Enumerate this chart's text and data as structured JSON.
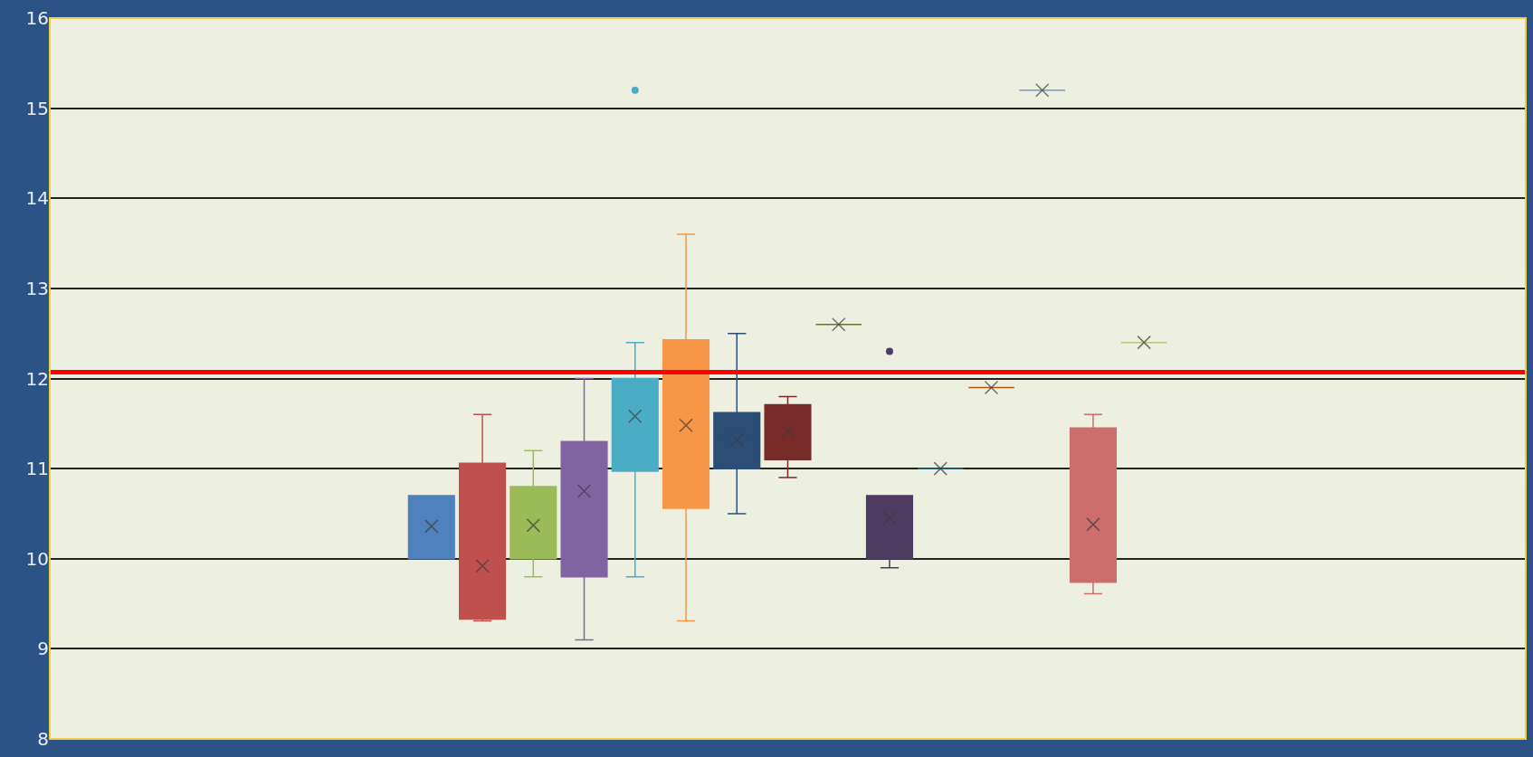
{
  "chart_data": {
    "type": "box",
    "categories": [
      null,
      null,
      null,
      null,
      null,
      null,
      null,
      null,
      null,
      null,
      null,
      null,
      null,
      null,
      null,
      null,
      null,
      null,
      null,
      null,
      null,
      null,
      null,
      null,
      null,
      null,
      null,
      null,
      null
    ],
    "boxes": [
      null,
      null,
      null,
      null,
      null,
      null,
      null,
      {
        "low": 10.0,
        "q1": 10.0,
        "median": 10.37,
        "q3": 10.7,
        "high": 10.7,
        "mean": 10.36
      },
      {
        "low": 9.31,
        "q1": 9.33,
        "median": 9.42,
        "q3": 11.06,
        "high": 11.6,
        "mean": 9.92
      },
      {
        "low": 9.8,
        "q1": 10.0,
        "median": 10.3,
        "q3": 10.8,
        "high": 11.2,
        "mean": 10.37
      },
      {
        "low": 9.1,
        "q1": 9.8,
        "median": 11.0,
        "q3": 11.3,
        "high": 12.0,
        "mean": 10.75
      },
      {
        "low": 9.8,
        "q1": 10.97,
        "median": 11.35,
        "q3": 12.0,
        "high": 12.4,
        "mean": 11.58,
        "outliers": [
          15.2
        ]
      },
      {
        "low": 9.31,
        "q1": 10.56,
        "median": 11.75,
        "q3": 12.43,
        "high": 13.6,
        "mean": 11.48
      },
      {
        "low": 10.5,
        "q1": 11.0,
        "median": 11.3,
        "q3": 11.62,
        "high": 12.5,
        "mean": 11.32
      },
      {
        "low": 10.9,
        "q1": 11.1,
        "median": 11.5,
        "q3": 11.71,
        "high": 11.8,
        "mean": 11.41
      },
      {
        "low": 12.6,
        "q1": 12.6,
        "median": 12.6,
        "q3": 12.6,
        "high": 12.6,
        "mean": 12.6
      },
      {
        "low": 9.9,
        "q1": 10.0,
        "median": 10.2,
        "q3": 10.7,
        "high": 10.7,
        "mean": 10.45,
        "outliers": [
          12.3
        ]
      },
      {
        "low": 11.0,
        "q1": 11.0,
        "median": 11.0,
        "q3": 11.0,
        "high": 11.0,
        "mean": 11.0
      },
      {
        "low": 11.9,
        "q1": 11.9,
        "median": 11.9,
        "q3": 11.9,
        "high": 11.9,
        "mean": 11.9
      },
      {
        "low": 15.2,
        "q1": 15.2,
        "median": 15.2,
        "q3": 15.2,
        "high": 15.2,
        "mean": 15.2
      },
      {
        "low": 9.61,
        "q1": 9.74,
        "median": 9.95,
        "q3": 11.45,
        "high": 11.6,
        "mean": 10.38
      },
      {
        "low": 12.4,
        "q1": 12.4,
        "median": 12.4,
        "q3": 12.4,
        "high": 12.4,
        "mean": 12.4
      },
      null,
      null,
      null,
      null,
      null,
      null,
      null
    ],
    "colors": [
      null,
      null,
      null,
      null,
      null,
      null,
      null,
      "#4f81bd",
      "#c0504d",
      "#9bbb59",
      "#8064a2",
      "#4bacc6",
      "#f79646",
      "#2c4d75",
      "#772c2a",
      "#5f7530",
      "#4d3b62",
      "#276a7c",
      "#b65708",
      "#729aca",
      "#cd6e6c",
      "#afc97a",
      null,
      null,
      null,
      null,
      null,
      null,
      null
    ],
    "ylim": [
      8,
      16
    ],
    "yticks": [
      8,
      9,
      10,
      11,
      12,
      13,
      14,
      15,
      16
    ],
    "ref_lines": [
      {
        "axis": "y",
        "value": 12.07,
        "color": "#ff0000"
      }
    ],
    "grid": "y",
    "tick_labels": "y",
    "marker": "cross"
  }
}
